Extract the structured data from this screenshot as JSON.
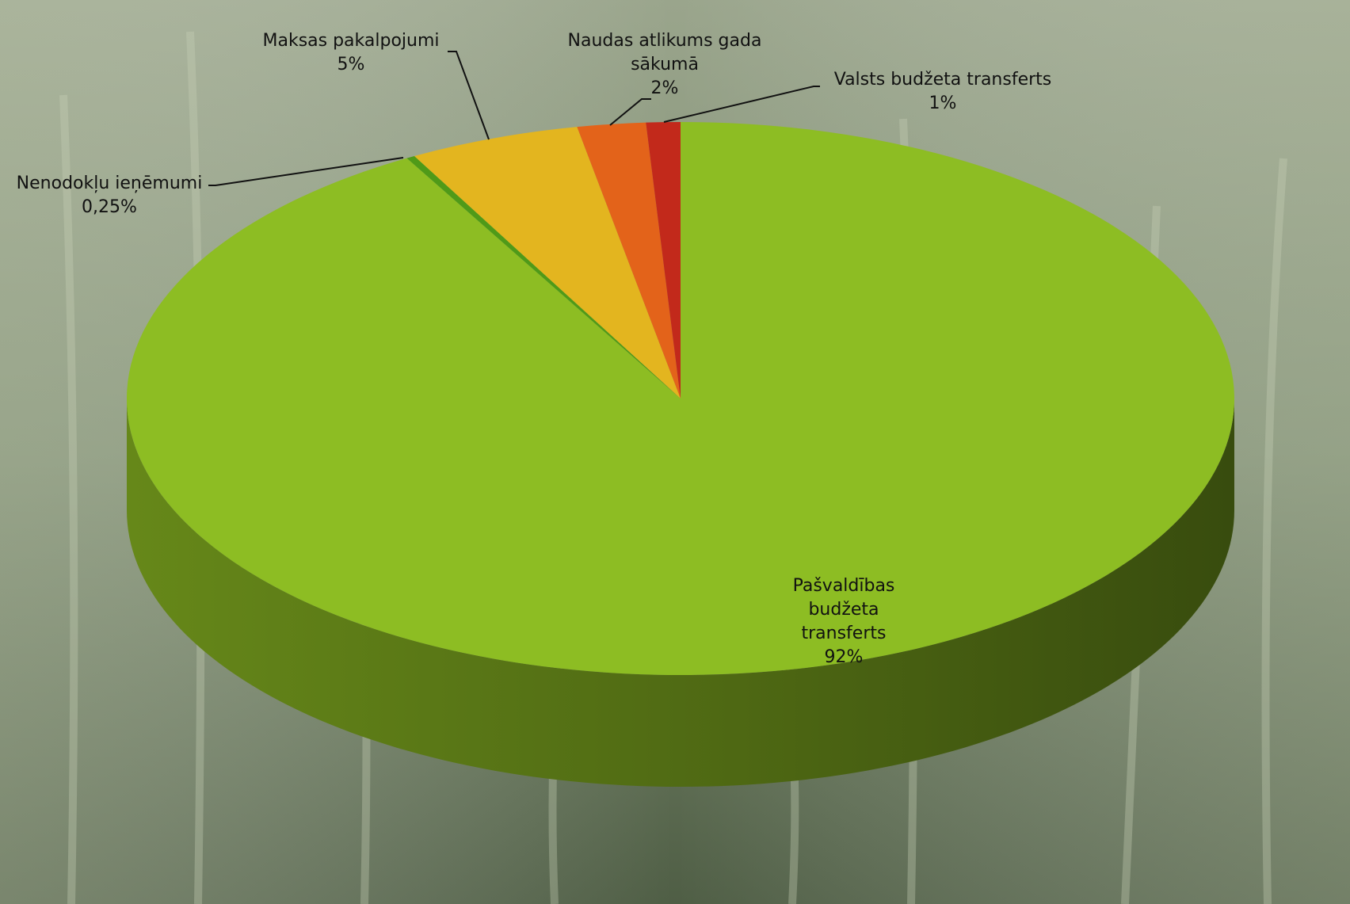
{
  "chart_data": {
    "type": "pie",
    "categories": [
      "Pašvaldības budžeta transferts",
      "Nenodokļu ieņēmumi",
      "Maksas pakalpojumi",
      "Naudas atlikums gada sākumā",
      "Valsts budžeta transferts"
    ],
    "values": [
      92,
      0.25,
      5,
      2,
      1
    ],
    "value_labels": [
      "92%",
      "0,25%",
      "5%",
      "2%",
      "1%"
    ],
    "colors": [
      "#8dbd23",
      "#4f9a18",
      "#e3b51f",
      "#e3631a",
      "#c2291b"
    ],
    "three_d": true
  }
}
